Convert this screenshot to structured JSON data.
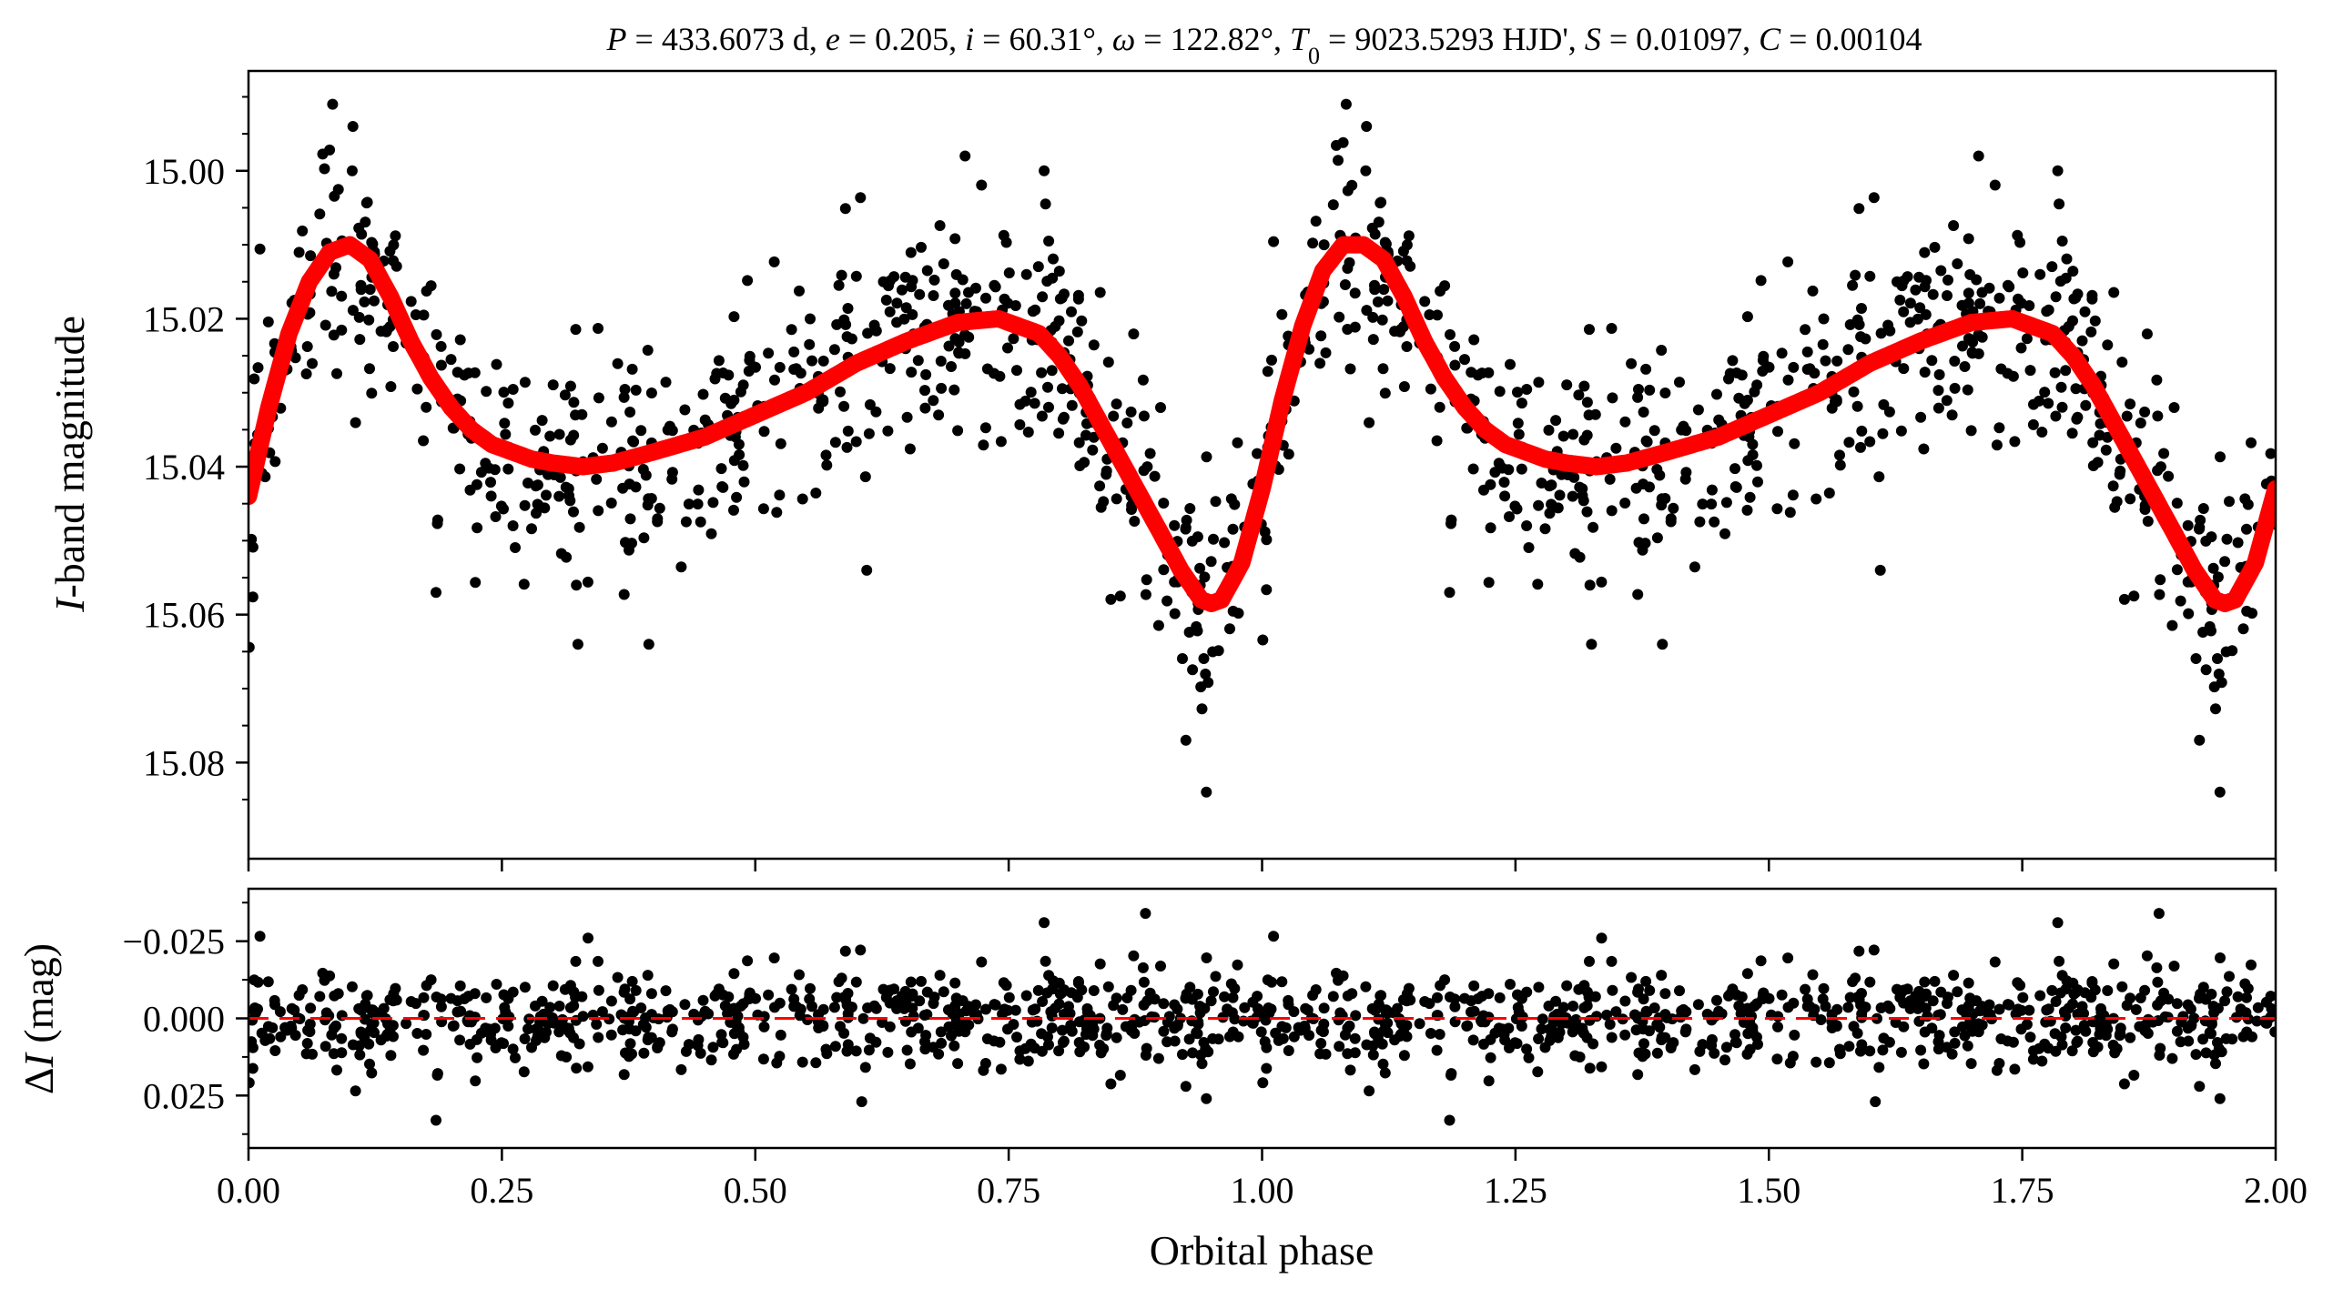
{
  "chart_data": [
    {
      "type": "scatter",
      "panel": "top",
      "title": "P = 433.6073 d, e = 0.205, i = 60.31°, ω = 122.82°, T0 = 9023.5293 HJD', S = 0.01097, C = 0.00104",
      "title_parts": {
        "P": "433.6073 d",
        "e": "0.205",
        "i": "60.31°",
        "omega": "122.82°",
        "T0": "9023.5293 HJD'",
        "S": "0.01097",
        "C": "0.00104"
      },
      "xlabel": "",
      "ylabel_italic": "I",
      "ylabel_rest": "-band magnitude",
      "xlim": [
        0,
        2
      ],
      "ylim": [
        15.093,
        14.9865
      ],
      "y_inverted": true,
      "yticks": [
        "15.00",
        "15.02",
        "15.04",
        "15.06",
        "15.08"
      ],
      "ytick_values": [
        15.0,
        15.02,
        15.04,
        15.06,
        15.08
      ],
      "xtick_values": [
        0,
        0.25,
        0.5,
        0.75,
        1.0,
        1.25,
        1.5,
        1.75,
        2.0
      ],
      "model_curve": {
        "name": "fit",
        "color": "#ff0000",
        "x": [
          0.0,
          0.02,
          0.04,
          0.06,
          0.08,
          0.1,
          0.12,
          0.14,
          0.16,
          0.18,
          0.2,
          0.22,
          0.24,
          0.26,
          0.28,
          0.3,
          0.33,
          0.36,
          0.4,
          0.45,
          0.5,
          0.55,
          0.6,
          0.65,
          0.7,
          0.74,
          0.78,
          0.8,
          0.82,
          0.84,
          0.86,
          0.88,
          0.9,
          0.92,
          0.94,
          0.95,
          0.96,
          0.98,
          1.0,
          1.02,
          1.04,
          1.06,
          1.08,
          1.1,
          1.12,
          1.14,
          1.16,
          1.18,
          1.2,
          1.22,
          1.24,
          1.26,
          1.28,
          1.3,
          1.33,
          1.36,
          1.4,
          1.45,
          1.5,
          1.55,
          1.6,
          1.65,
          1.7,
          1.74,
          1.78,
          1.8,
          1.82,
          1.84,
          1.86,
          1.88,
          1.9,
          1.92,
          1.94,
          1.95,
          1.96,
          1.98,
          2.0
        ],
        "y": [
          15.044,
          15.032,
          15.022,
          15.015,
          15.011,
          15.01,
          15.012,
          15.017,
          15.023,
          15.028,
          15.032,
          15.035,
          15.037,
          15.038,
          15.039,
          15.0395,
          15.04,
          15.0395,
          15.038,
          15.036,
          15.033,
          15.03,
          15.026,
          15.023,
          15.0205,
          15.02,
          15.022,
          15.025,
          15.029,
          15.034,
          15.039,
          15.044,
          15.049,
          15.054,
          15.058,
          15.0585,
          15.058,
          15.053,
          15.043,
          15.031,
          15.021,
          15.0135,
          15.01,
          15.01,
          15.012,
          15.017,
          15.023,
          15.028,
          15.032,
          15.035,
          15.037,
          15.038,
          15.039,
          15.0395,
          15.04,
          15.0395,
          15.038,
          15.036,
          15.033,
          15.03,
          15.026,
          15.023,
          15.0205,
          15.02,
          15.022,
          15.025,
          15.029,
          15.034,
          15.039,
          15.044,
          15.049,
          15.054,
          15.058,
          15.0585,
          15.058,
          15.053,
          15.043
        ]
      },
      "observations": {
        "name": "data",
        "color": "#000000",
        "count_per_phase_cycle": 620,
        "scatter_sigma_mag": 0.0085,
        "outliers": [
          {
            "x": 0.083,
            "y": 14.991
          },
          {
            "x": 0.103,
            "y": 14.994
          },
          {
            "x": 0.707,
            "y": 14.998
          },
          {
            "x": 0.785,
            "y": 15.0
          },
          {
            "x": 0.945,
            "y": 15.084
          },
          {
            "x": 0.325,
            "y": 15.064
          },
          {
            "x": 0.395,
            "y": 15.064
          },
          {
            "x": 0.185,
            "y": 15.057
          },
          {
            "x": 0.61,
            "y": 15.054
          },
          {
            "x": 1.083,
            "y": 14.991
          },
          {
            "x": 1.103,
            "y": 14.994
          },
          {
            "x": 1.707,
            "y": 14.998
          },
          {
            "x": 1.785,
            "y": 15.0
          },
          {
            "x": 1.945,
            "y": 15.084
          },
          {
            "x": 1.325,
            "y": 15.064
          },
          {
            "x": 1.395,
            "y": 15.064
          },
          {
            "x": 1.185,
            "y": 15.057
          },
          {
            "x": 1.61,
            "y": 15.054
          }
        ]
      }
    },
    {
      "type": "scatter",
      "panel": "bottom",
      "title": "",
      "xlabel": "Orbital phase",
      "ylabel_prefix": "Δ",
      "ylabel_italic": "I",
      "ylabel_rest": " (mag)",
      "xlim": [
        0,
        2
      ],
      "ylim": [
        0.042,
        -0.042
      ],
      "y_inverted": true,
      "yticks": [
        "−0.025",
        "0.000",
        "0.025"
      ],
      "ytick_values": [
        -0.025,
        0.0,
        0.025
      ],
      "xticks": [
        "0.00",
        "0.25",
        "0.50",
        "0.75",
        "1.00",
        "1.25",
        "1.50",
        "1.75",
        "2.00"
      ],
      "xtick_values": [
        0,
        0.25,
        0.5,
        0.75,
        1.0,
        1.25,
        1.5,
        1.75,
        2.0
      ],
      "zero_line": {
        "y": 0,
        "style": "dashed",
        "color": "#ff0000"
      },
      "residuals": {
        "name": "residuals",
        "color": "#000000",
        "scatter_sigma_mag": 0.0085,
        "outliers": [
          {
            "x": 0.885,
            "y": -0.034
          },
          {
            "x": 0.785,
            "y": -0.031
          },
          {
            "x": 0.185,
            "y": 0.033
          },
          {
            "x": 0.605,
            "y": 0.027
          },
          {
            "x": 0.945,
            "y": 0.026
          },
          {
            "x": 0.335,
            "y": -0.026
          },
          {
            "x": 1.885,
            "y": -0.034
          },
          {
            "x": 1.785,
            "y": -0.031
          },
          {
            "x": 1.185,
            "y": 0.033
          },
          {
            "x": 1.605,
            "y": 0.027
          },
          {
            "x": 1.945,
            "y": 0.026
          },
          {
            "x": 1.335,
            "y": -0.026
          }
        ]
      }
    }
  ]
}
